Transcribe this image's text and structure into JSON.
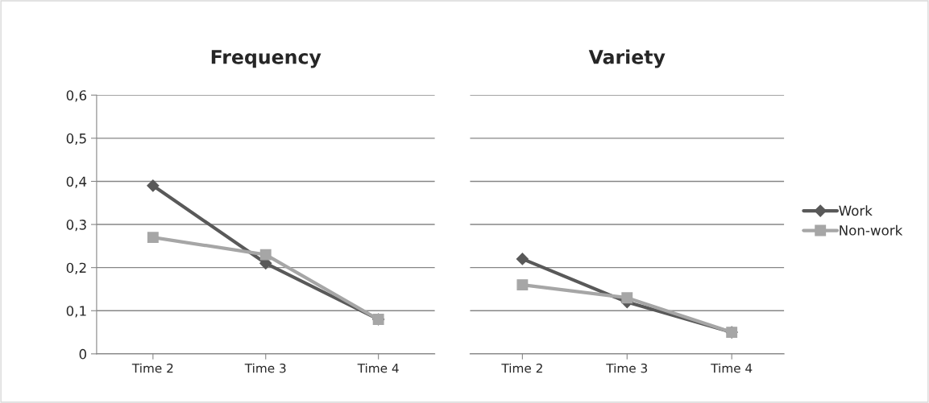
{
  "chart_data": [
    {
      "type": "line",
      "title": "Frequency",
      "categories": [
        "Time 2",
        "Time 3",
        "Time 4"
      ],
      "ylim": [
        0,
        0.6
      ],
      "yticks": [
        {
          "value": 0,
          "label": "0"
        },
        {
          "value": 0.1,
          "label": "0,1"
        },
        {
          "value": 0.2,
          "label": "0,2"
        },
        {
          "value": 0.3,
          "label": "0,3"
        },
        {
          "value": 0.4,
          "label": "0,4"
        },
        {
          "value": 0.5,
          "label": "0,5"
        },
        {
          "value": 0.6,
          "label": "0,6"
        }
      ],
      "grid": "y",
      "legend": "right",
      "series": [
        {
          "name": "Work",
          "color": "#595959",
          "marker": "diamond",
          "values": [
            0.39,
            0.21,
            0.08
          ]
        },
        {
          "name": "Non-work",
          "color": "#a6a6a6",
          "marker": "square",
          "values": [
            0.27,
            0.23,
            0.08
          ]
        }
      ]
    },
    {
      "type": "line",
      "title": "Variety",
      "categories": [
        "Time 2",
        "Time 3",
        "Time 4"
      ],
      "ylim": [
        0,
        0.6
      ],
      "yticks": [
        0,
        0.1,
        0.2,
        0.3,
        0.4,
        0.5,
        0.6
      ],
      "tick_labels": "x",
      "grid": "y",
      "series": [
        {
          "color": "#595959",
          "marker": "diamond",
          "values": [
            0.22,
            0.12,
            0.05
          ]
        },
        {
          "color": "#a6a6a6",
          "marker": "square",
          "values": [
            0.16,
            0.13,
            0.05
          ]
        }
      ]
    }
  ]
}
